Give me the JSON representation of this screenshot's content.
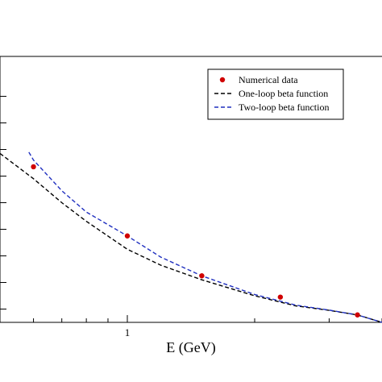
{
  "chart_data": {
    "type": "line",
    "title": "",
    "xlabel": "E (GeV)",
    "ylabel": "",
    "x_scale": "log",
    "xlim": [
      0.5,
      4
    ],
    "ylim": [
      0.0,
      1.0
    ],
    "x_major_ticks": [
      1
    ],
    "x_tick_labels": [
      "1"
    ],
    "y_ticks": [
      0.05,
      0.15,
      0.25,
      0.35,
      0.45,
      0.55,
      0.65,
      0.75,
      0.85
    ],
    "legend_position": "top-right",
    "series": [
      {
        "name": "Numerical data",
        "kind": "points",
        "color": "#d00000",
        "x": [
          0.6,
          1.0,
          1.5,
          2.3,
          3.5
        ],
        "y": [
          0.585,
          0.325,
          0.175,
          0.095,
          0.028
        ]
      },
      {
        "name": "One-loop beta function",
        "kind": "line",
        "dash": "dashed",
        "color": "#000000",
        "x": [
          0.5,
          0.6,
          0.7,
          0.8,
          1.0,
          1.2,
          1.5,
          2.0,
          2.5,
          3.0,
          3.5,
          4.0
        ],
        "y": [
          0.635,
          0.54,
          0.45,
          0.38,
          0.275,
          0.215,
          0.16,
          0.1,
          0.062,
          0.045,
          0.028,
          0.0
        ]
      },
      {
        "name": "Two-loop beta function",
        "kind": "line",
        "dash": "dashed",
        "color": "#1f2fbf",
        "x": [
          0.585,
          0.6,
          0.7,
          0.8,
          1.0,
          1.2,
          1.5,
          2.0,
          2.5,
          3.0,
          3.5,
          4.0
        ],
        "y": [
          0.64,
          0.61,
          0.495,
          0.415,
          0.325,
          0.245,
          0.175,
          0.105,
          0.065,
          0.046,
          0.028,
          0.0
        ]
      }
    ]
  }
}
